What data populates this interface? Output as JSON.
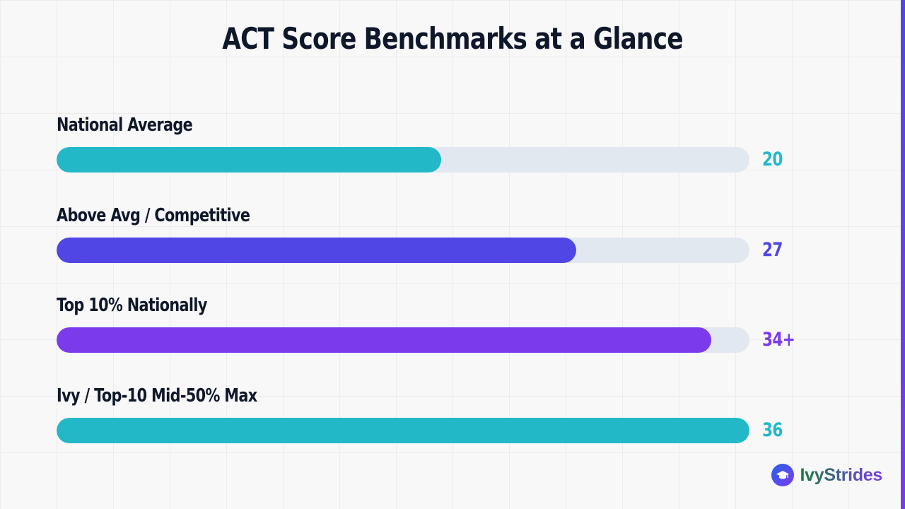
{
  "title": "ACT Score Benchmarks at a Glance",
  "colors": {
    "teal": "#22b8c8",
    "indigo": "#4f46e5",
    "violet": "#7c3aed",
    "track": "#e2e8f0",
    "title": "#0f172a",
    "brand_accent": "#2563eb"
  },
  "chart_data": {
    "type": "bar",
    "orientation": "horizontal",
    "title": "ACT Score Benchmarks at a Glance",
    "xlim": [
      0,
      36
    ],
    "grid": true,
    "categories": [
      "National Average",
      "Above Avg / Competitive",
      "Top 10% Nationally",
      "Ivy / Top-10 Mid-50% Max"
    ],
    "values": [
      20,
      27,
      34,
      36
    ],
    "value_labels": [
      "20",
      "27",
      "34+",
      "36"
    ],
    "bar_colors": [
      "#22b8c8",
      "#4f46e5",
      "#7c3aed",
      "#22b8c8"
    ]
  },
  "brand": {
    "name": "IvyStrides",
    "icon": "graduation-cap-icon",
    "logo_gradient": [
      "#2563eb",
      "#7c3aed"
    ],
    "text_gradient": [
      "#15803d",
      "#7c3aed"
    ]
  }
}
